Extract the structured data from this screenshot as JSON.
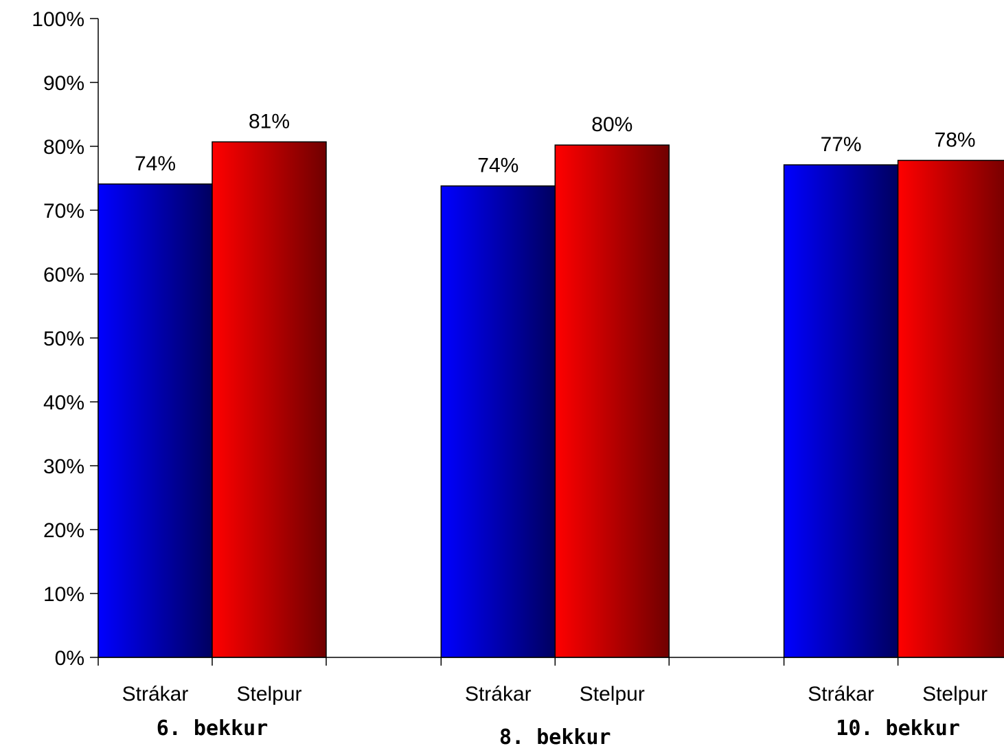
{
  "chart_data": {
    "type": "bar",
    "title": "",
    "xlabel": "",
    "ylabel": "",
    "ylim": [
      0,
      100
    ],
    "y_ticks": [
      "0%",
      "10%",
      "20%",
      "30%",
      "40%",
      "50%",
      "60%",
      "70%",
      "80%",
      "90%",
      "100%"
    ],
    "grid": false,
    "legend": "none",
    "groups": [
      {
        "label": "6. bekkur",
        "bars": [
          {
            "category": "Strákar",
            "value": 74.1,
            "label": "74%",
            "series": "boys"
          },
          {
            "category": "Stelpur",
            "value": 80.7,
            "label": "81%",
            "series": "girls"
          }
        ]
      },
      {
        "label": "8. bekkur",
        "bars": [
          {
            "category": "Strákar",
            "value": 73.8,
            "label": "74%",
            "series": "boys"
          },
          {
            "category": "Stelpur",
            "value": 80.2,
            "label": "80%",
            "series": "girls"
          }
        ]
      },
      {
        "label": "10. bekkur",
        "bars": [
          {
            "category": "Strákar",
            "value": 77.1,
            "label": "77%",
            "series": "boys"
          },
          {
            "category": "Stelpur",
            "value": 77.8,
            "label": "78%",
            "series": "girls"
          }
        ]
      }
    ],
    "colors": {
      "boys_light": "#0000ff",
      "boys_dark": "#000060",
      "girls_light": "#ff0000",
      "girls_dark": "#700000",
      "axis": "#000000"
    }
  }
}
